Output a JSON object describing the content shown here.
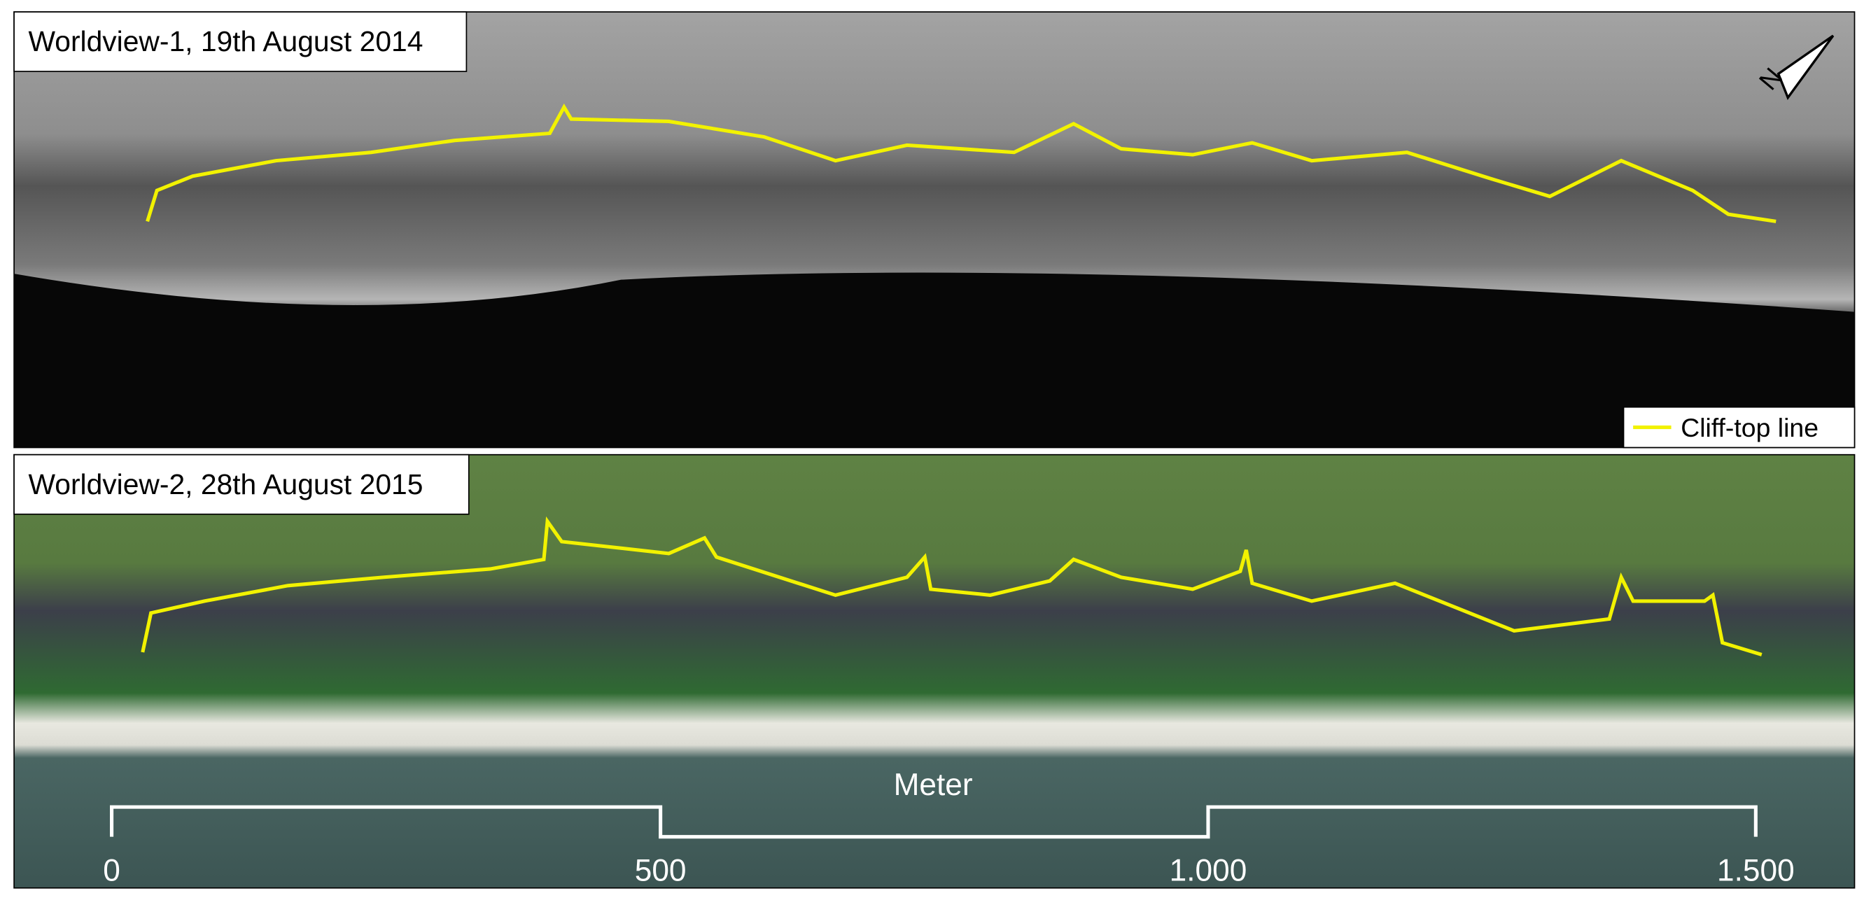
{
  "panels": [
    {
      "label": "Worldview-1, 19th August 2014"
    },
    {
      "label": "Worldview-2, 28th August 2015"
    }
  ],
  "legend": {
    "label": "Cliff-top line"
  },
  "north_arrow": {
    "label": "N"
  },
  "scale_bar": {
    "title": "Meter",
    "ticks": [
      "0",
      "500",
      "1.000",
      "1.500"
    ]
  }
}
